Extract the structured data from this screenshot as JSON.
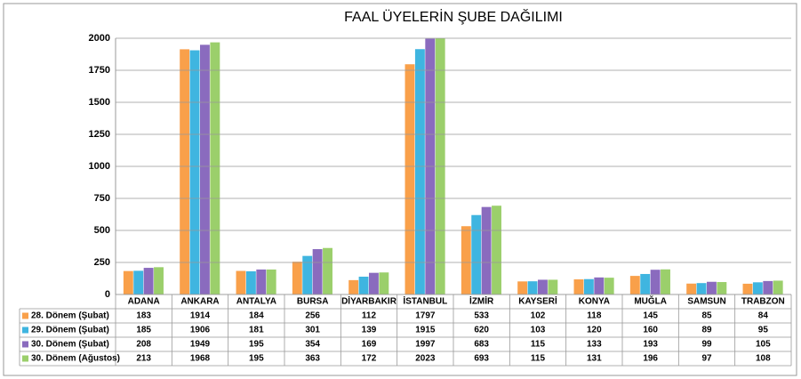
{
  "chart_data": {
    "type": "bar",
    "title": "FAAL ÜYELERİN ŞUBE DAĞILIMI",
    "categories": [
      "ADANA",
      "ANKARA",
      "ANTALYA",
      "BURSA",
      "DİYARBAKIR",
      "İSTANBUL",
      "İZMİR",
      "KAYSERİ",
      "KONYA",
      "MUĞLA",
      "SAMSUN",
      "TRABZON"
    ],
    "series": [
      {
        "name": "28. Dönem (Şubat)",
        "color": "#f9a04a",
        "values": [
          183,
          1914,
          184,
          256,
          112,
          1797,
          533,
          102,
          118,
          145,
          85,
          84
        ]
      },
      {
        "name": "29. Dönem (Şubat)",
        "color": "#3fb5e0",
        "values": [
          185,
          1906,
          181,
          301,
          139,
          1915,
          620,
          103,
          120,
          160,
          89,
          95
        ]
      },
      {
        "name": "30. Dönem (Şubat)",
        "color": "#8a6bbe",
        "values": [
          208,
          1949,
          195,
          354,
          169,
          1997,
          683,
          115,
          133,
          193,
          99,
          105
        ]
      },
      {
        "name": "30. Dönem (Ağustos)",
        "color": "#9bcf6b",
        "values": [
          213,
          1968,
          195,
          363,
          172,
          2023,
          693,
          115,
          131,
          196,
          97,
          108
        ]
      }
    ],
    "ylim": [
      0,
      2000
    ],
    "yticks": [
      0,
      250,
      500,
      750,
      1000,
      1250,
      1500,
      1750,
      2000
    ],
    "grid": true
  }
}
